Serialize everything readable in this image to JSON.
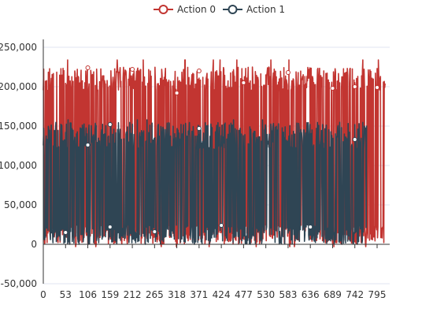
{
  "chart_data": {
    "type": "line",
    "title": "",
    "xlabel": "",
    "ylabel": "",
    "legend_position": "top-center",
    "grid": true,
    "x_range": [
      0,
      825
    ],
    "x_ticks": [
      "0",
      "53",
      "106",
      "159",
      "212",
      "265",
      "318",
      "371",
      "424",
      "477",
      "530",
      "583",
      "636",
      "689",
      "742",
      "795"
    ],
    "y_range": [
      -50000,
      250000
    ],
    "y_ticks": [
      "-50,000",
      "0",
      "50,000",
      "100,000",
      "150,000",
      "200,000",
      "250,000"
    ],
    "y_tick_values": [
      -50000,
      0,
      50000,
      100000,
      150000,
      200000,
      250000
    ],
    "series": [
      {
        "name": "Action 0",
        "color": "#c23531",
        "x_max": 814,
        "high_band": [
          195000,
          225000
        ],
        "low_band": [
          0,
          25000
        ],
        "peak_max": 234000,
        "dip_min": -3000,
        "points": [
          [
            106,
            224000
          ],
          [
            212,
            222000
          ],
          [
            371,
            220000
          ],
          [
            477,
            205000
          ],
          [
            583,
            218000
          ],
          [
            742,
            200000
          ],
          [
            318,
            192000
          ],
          [
            689,
            198000
          ],
          [
            795,
            199000
          ]
        ]
      },
      {
        "name": "Action 1",
        "color": "#2f4554",
        "x_max": 770,
        "high_band": [
          120000,
          155000
        ],
        "low_band": [
          0,
          25000
        ],
        "peak_max": 158000,
        "dip_min": 0,
        "points": [
          [
            106,
            126000
          ],
          [
            159,
            152000
          ],
          [
            371,
            147000
          ],
          [
            742,
            133000
          ],
          [
            159,
            22000
          ],
          [
            424,
            24000
          ],
          [
            636,
            22000
          ],
          [
            53,
            15000
          ],
          [
            265,
            16000
          ]
        ]
      }
    ]
  }
}
